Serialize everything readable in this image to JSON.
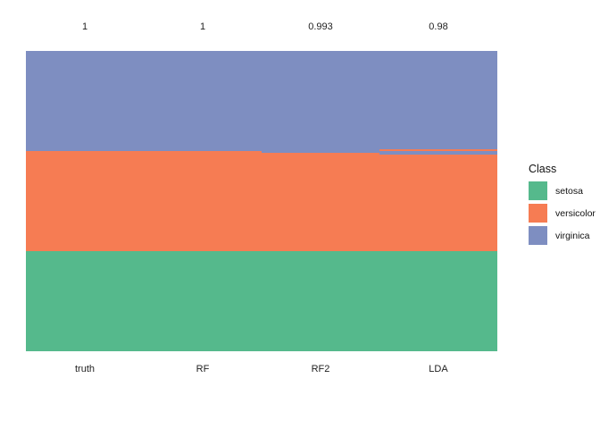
{
  "chart_data": {
    "type": "bar",
    "subtype": "stacked-class-prediction-columns",
    "title": "",
    "xlabel": "",
    "ylabel": "",
    "gridlines": false,
    "y_axis": "none",
    "categories": [
      "truth",
      "RF",
      "RF2",
      "LDA"
    ],
    "accuracy_labels": [
      "1",
      "1",
      "0.993",
      "0.98"
    ],
    "total_observations_per_column": 150,
    "classes": [
      {
        "name": "setosa",
        "color": "#55B98C"
      },
      {
        "name": "versicolor",
        "color": "#F67C53"
      },
      {
        "name": "virginica",
        "color": "#7E8EC1"
      }
    ],
    "columns": [
      {
        "label": "truth",
        "accuracy_label": "1",
        "segments": [
          [
            "virginica",
            50
          ],
          [
            "versicolor",
            50
          ],
          [
            "setosa",
            50
          ]
        ]
      },
      {
        "label": "RF",
        "accuracy_label": "1",
        "segments": [
          [
            "virginica",
            50
          ],
          [
            "versicolor",
            50
          ],
          [
            "setosa",
            50
          ]
        ]
      },
      {
        "label": "RF2",
        "accuracy_label": "0.993",
        "segments": [
          [
            "virginica",
            51
          ],
          [
            "versicolor",
            49
          ],
          [
            "setosa",
            50
          ]
        ]
      },
      {
        "label": "LDA",
        "accuracy_label": "0.98",
        "segments": [
          [
            "virginica",
            49
          ],
          [
            "versicolor",
            1
          ],
          [
            "virginica",
            2
          ],
          [
            "versicolor",
            48
          ],
          [
            "setosa",
            50
          ]
        ]
      }
    ],
    "legend": {
      "title": "Class",
      "entries": [
        "setosa",
        "versicolor",
        "virginica"
      ],
      "position": "right"
    }
  }
}
